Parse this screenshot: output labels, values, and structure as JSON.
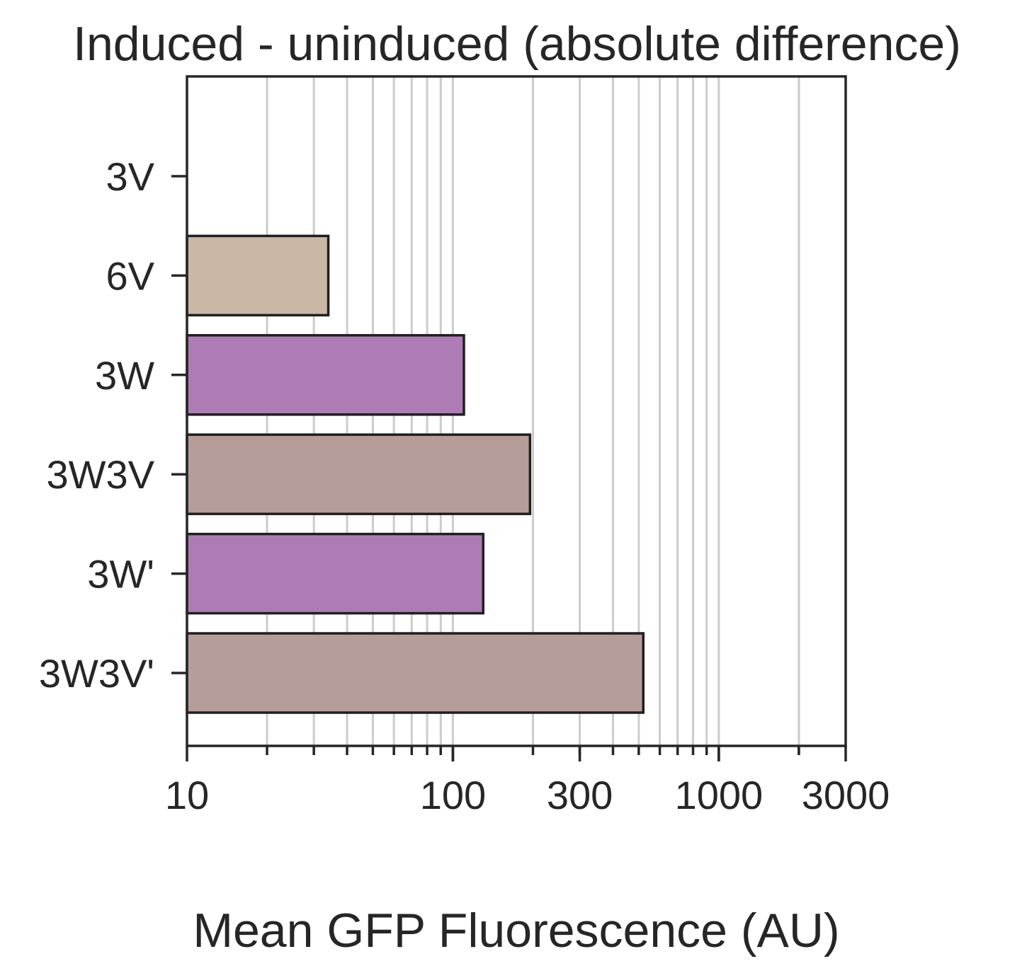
{
  "chart_data": {
    "type": "bar",
    "orientation": "horizontal",
    "title": "Induced - uninduced (absolute difference)",
    "xlabel": "Mean GFP Fluorescence (AU)",
    "ylabel": "",
    "x_scale": "log",
    "xlim": [
      10,
      3000
    ],
    "x_ticks": [
      10,
      100,
      300,
      1000,
      3000
    ],
    "x_tick_labels": [
      "10",
      "100",
      "300",
      "1000",
      "3000"
    ],
    "categories": [
      "3V",
      "6V",
      "3W",
      "3W3V",
      "3W'",
      "3W3V'"
    ],
    "values": [
      null,
      34,
      110,
      195,
      130,
      520
    ],
    "bar_colors": [
      "#ffffff",
      "#cbb7a6",
      "#ae7cb4",
      "#b79d99",
      "#ae7cb4",
      "#b79d99"
    ],
    "grid": "x-major-and-minor",
    "legend": "none"
  }
}
